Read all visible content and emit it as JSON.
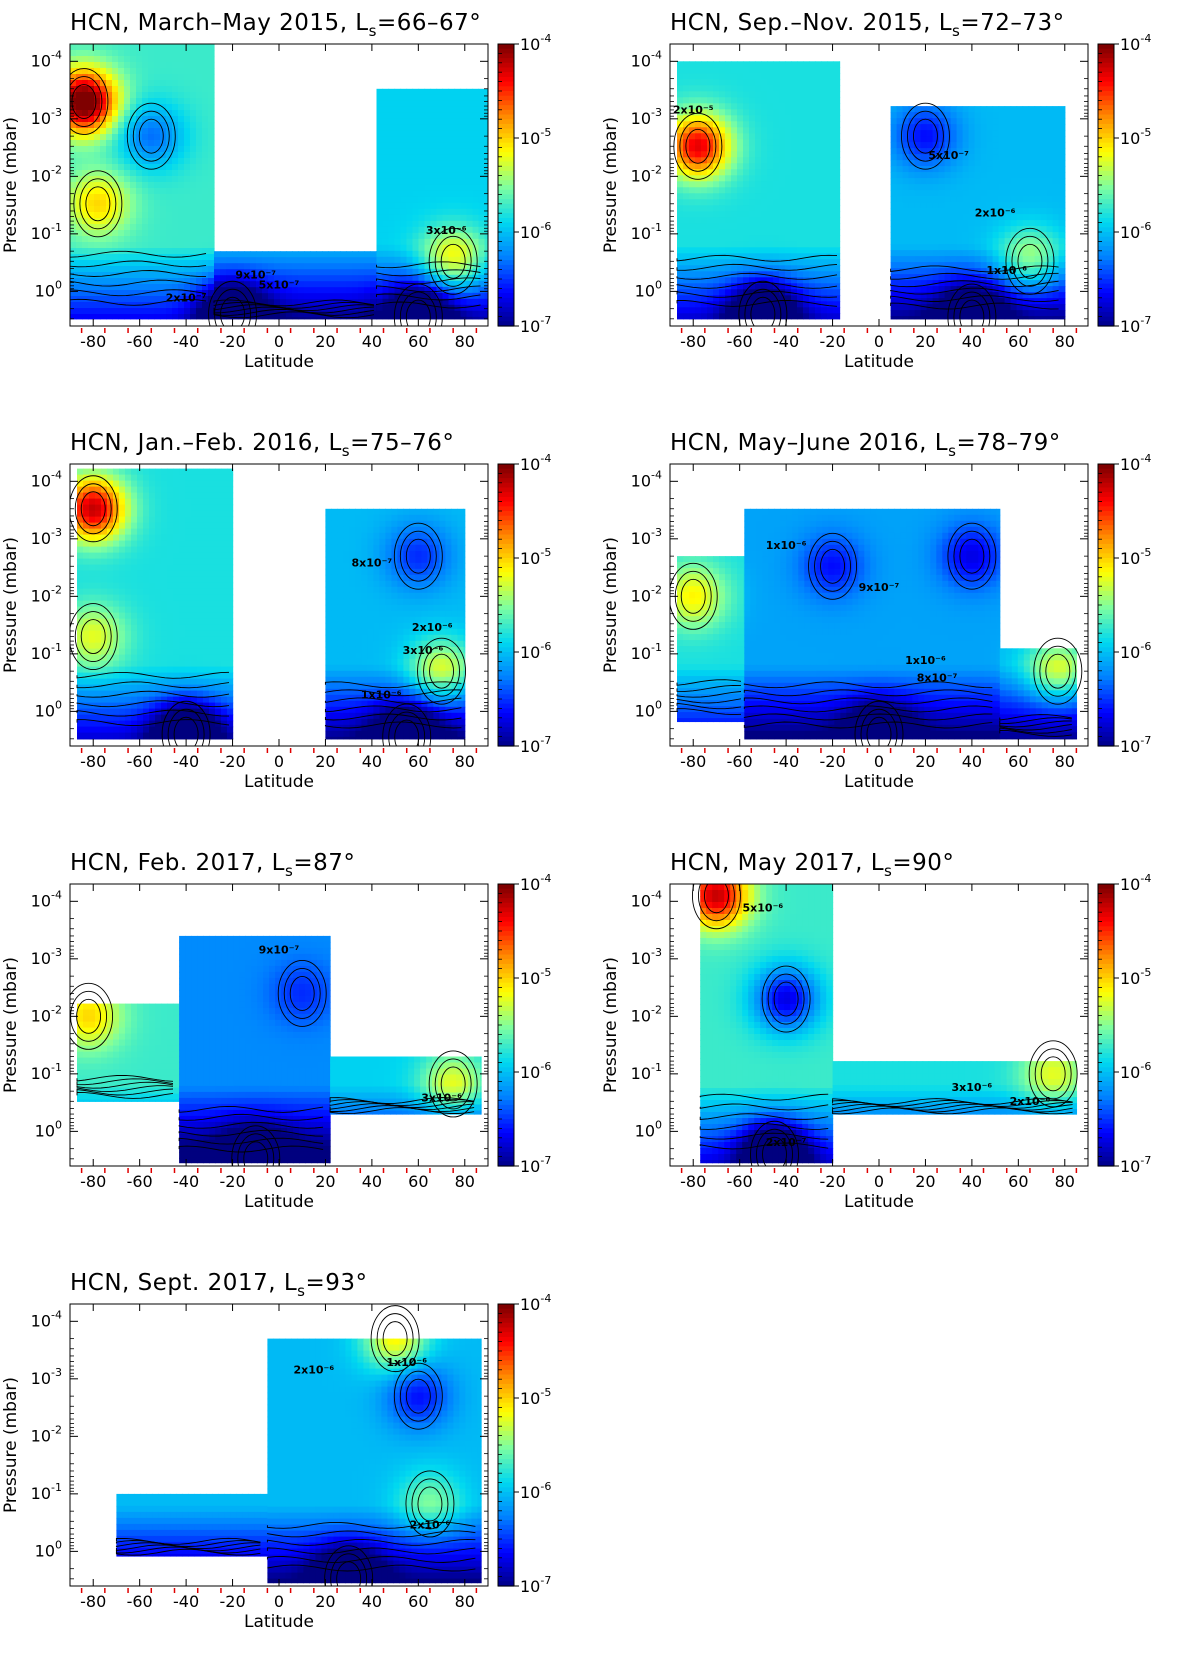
{
  "colorbar": {
    "ticks": [
      {
        "mant": "10",
        "exp": "-4",
        "v": -4
      },
      {
        "mant": "10",
        "exp": "-5",
        "v": -5
      },
      {
        "mant": "10",
        "exp": "-6",
        "v": -6
      },
      {
        "mant": "10",
        "exp": "-7",
        "v": -7
      }
    ],
    "colors": [
      "#00007f",
      "#0000ff",
      "#007fff",
      "#00d8f0",
      "#7fff9f",
      "#ffff00",
      "#ff8c00",
      "#ff0000",
      "#7f0000"
    ]
  },
  "chart_data": [
    {
      "type": "heatmap",
      "quantity": "HCN",
      "title_main": "HCN, March–May 2015, L",
      "title_sub": "s",
      "title_rest": "=66–67°",
      "xlabel": "Latitude",
      "ylabel": "Pressure (mbar)",
      "xlim": [
        -90,
        90
      ],
      "ylim_mbar": [
        5e-05,
        4.0
      ],
      "y_scale": "log",
      "xticks": [
        -80,
        -60,
        -40,
        -20,
        0,
        20,
        40,
        60,
        80
      ],
      "yticks": [
        {
          "mant": "10",
          "exp": "-4",
          "v": -4
        },
        {
          "mant": "10",
          "exp": "-3",
          "v": -3
        },
        {
          "mant": "10",
          "exp": "-2",
          "v": -2
        },
        {
          "mant": "10",
          "exp": "-1",
          "v": -1
        },
        {
          "mant": "10",
          "exp": "0",
          "v": 0
        }
      ],
      "colorbar_range": [
        1e-07,
        0.0001
      ],
      "colorbar_scale": "log",
      "regions": [
        {
          "lat": [
            -90,
            -28
          ],
          "p_top": 5e-05,
          "p_bot": 3.0,
          "base": -5.7
        },
        {
          "lat": [
            -28,
            42
          ],
          "p_top": 0.2,
          "p_bot": 3.0,
          "base": -6.0
        },
        {
          "lat": [
            42,
            90
          ],
          "p_top": 0.0003,
          "p_bot": 3.0,
          "base": -5.9
        }
      ],
      "features": [
        {
          "lat": -84,
          "p": 0.0005,
          "val": -3.8
        },
        {
          "lat": -78,
          "p": 0.03,
          "val": -5.0
        },
        {
          "lat": 75,
          "p": 0.3,
          "val": -5.0
        },
        {
          "lat": -20,
          "p": 2.5,
          "val": -7.0
        },
        {
          "lat": 60,
          "p": 2.8,
          "val": -7.0
        },
        {
          "lat": -55,
          "p": 0.002,
          "val": -6.3
        }
      ],
      "contour_labels": [
        {
          "text": "3x10⁻⁶",
          "lat": 72,
          "p": 0.1
        },
        {
          "text": "2x10⁻⁷",
          "lat": -40,
          "p": 1.5
        },
        {
          "text": "9x10⁻⁷",
          "lat": -10,
          "p": 0.6
        },
        {
          "text": "5x10⁻⁷",
          "lat": 0,
          "p": 0.9
        }
      ]
    },
    {
      "type": "heatmap",
      "quantity": "HCN",
      "title_main": "HCN, Sep.–Nov. 2015, L",
      "title_sub": "s",
      "title_rest": "=72–73°",
      "xlabel": "Latitude",
      "ylabel": "Pressure (mbar)",
      "xlim": [
        -90,
        90
      ],
      "ylim_mbar": [
        5e-05,
        4.0
      ],
      "y_scale": "log",
      "xticks": [
        -80,
        -60,
        -40,
        -20,
        0,
        20,
        40,
        60,
        80
      ],
      "yticks": [
        {
          "mant": "10",
          "exp": "-4",
          "v": -4
        },
        {
          "mant": "10",
          "exp": "-3",
          "v": -3
        },
        {
          "mant": "10",
          "exp": "-2",
          "v": -2
        },
        {
          "mant": "10",
          "exp": "-1",
          "v": -1
        },
        {
          "mant": "10",
          "exp": "0",
          "v": 0
        }
      ],
      "colorbar_range": [
        1e-07,
        0.0001
      ],
      "colorbar_scale": "log",
      "regions": [
        {
          "lat": [
            -87,
            -17
          ],
          "p_top": 0.0001,
          "p_bot": 3.0,
          "base": -5.8
        },
        {
          "lat": [
            5,
            80
          ],
          "p_top": 0.0006,
          "p_bot": 3.0,
          "base": -6.0
        }
      ],
      "features": [
        {
          "lat": -78,
          "p": 0.003,
          "val": -4.3
        },
        {
          "lat": 65,
          "p": 0.3,
          "val": -5.3
        },
        {
          "lat": -50,
          "p": 2.5,
          "val": -7.0
        },
        {
          "lat": 40,
          "p": 2.8,
          "val": -7.0
        },
        {
          "lat": 20,
          "p": 0.002,
          "val": -6.6
        }
      ],
      "contour_labels": [
        {
          "text": "2x10⁻⁶",
          "lat": 50,
          "p": 0.05
        },
        {
          "text": "5x10⁻⁷",
          "lat": 30,
          "p": 0.005
        },
        {
          "text": "1x10⁻⁶",
          "lat": 55,
          "p": 0.5
        },
        {
          "text": "2x10⁻⁵",
          "lat": -80,
          "p": 0.0008
        }
      ]
    },
    {
      "type": "heatmap",
      "quantity": "HCN",
      "title_main": "HCN, Jan.–Feb. 2016, L",
      "title_sub": "s",
      "title_rest": "=75–76°",
      "xlabel": "Latitude",
      "ylabel": "Pressure (mbar)",
      "xlim": [
        -90,
        90
      ],
      "ylim_mbar": [
        5e-05,
        4.0
      ],
      "y_scale": "log",
      "xticks": [
        -80,
        -60,
        -40,
        -20,
        0,
        20,
        40,
        60,
        80
      ],
      "yticks": [
        {
          "mant": "10",
          "exp": "-4",
          "v": -4
        },
        {
          "mant": "10",
          "exp": "-3",
          "v": -3
        },
        {
          "mant": "10",
          "exp": "-2",
          "v": -2
        },
        {
          "mant": "10",
          "exp": "-1",
          "v": -1
        },
        {
          "mant": "10",
          "exp": "0",
          "v": 0
        }
      ],
      "colorbar_range": [
        1e-07,
        0.0001
      ],
      "colorbar_scale": "log",
      "regions": [
        {
          "lat": [
            -87,
            -20
          ],
          "p_top": 6e-05,
          "p_bot": 3.0,
          "base": -5.8
        },
        {
          "lat": [
            20,
            80
          ],
          "p_top": 0.0003,
          "p_bot": 3.0,
          "base": -6.0
        }
      ],
      "features": [
        {
          "lat": -80,
          "p": 0.0003,
          "val": -4.2
        },
        {
          "lat": -80,
          "p": 0.05,
          "val": -5.2
        },
        {
          "lat": 70,
          "p": 0.2,
          "val": -5.2
        },
        {
          "lat": -40,
          "p": 2.5,
          "val": -7.0
        },
        {
          "lat": 55,
          "p": 2.8,
          "val": -7.0
        },
        {
          "lat": 60,
          "p": 0.002,
          "val": -6.5
        }
      ],
      "contour_labels": [
        {
          "text": "3x10⁻⁶",
          "lat": 62,
          "p": 0.1
        },
        {
          "text": "2x10⁻⁶",
          "lat": 66,
          "p": 0.04
        },
        {
          "text": "1x10⁻⁶",
          "lat": 44,
          "p": 0.6
        },
        {
          "text": "8x10⁻⁷",
          "lat": 40,
          "p": 0.003
        }
      ]
    },
    {
      "type": "heatmap",
      "quantity": "HCN",
      "title_main": "HCN, May–June 2016, L",
      "title_sub": "s",
      "title_rest": "=78–79°",
      "xlabel": "Latitude",
      "ylabel": "Pressure (mbar)",
      "xlim": [
        -90,
        90
      ],
      "ylim_mbar": [
        5e-05,
        4.0
      ],
      "y_scale": "log",
      "xticks": [
        -80,
        -60,
        -40,
        -20,
        0,
        20,
        40,
        60,
        80
      ],
      "yticks": [
        {
          "mant": "10",
          "exp": "-4",
          "v": -4
        },
        {
          "mant": "10",
          "exp": "-3",
          "v": -3
        },
        {
          "mant": "10",
          "exp": "-2",
          "v": -2
        },
        {
          "mant": "10",
          "exp": "-1",
          "v": -1
        },
        {
          "mant": "10",
          "exp": "0",
          "v": 0
        }
      ],
      "colorbar_range": [
        1e-07,
        0.0001
      ],
      "colorbar_scale": "log",
      "regions": [
        {
          "lat": [
            -87,
            -58
          ],
          "p_top": 0.002,
          "p_bot": 1.5,
          "base": -5.8
        },
        {
          "lat": [
            -58,
            52
          ],
          "p_top": 0.0003,
          "p_bot": 3.0,
          "base": -6.1
        },
        {
          "lat": [
            52,
            85
          ],
          "p_top": 0.08,
          "p_bot": 3.0,
          "base": -6.0
        }
      ],
      "features": [
        {
          "lat": -80,
          "p": 0.01,
          "val": -5.1
        },
        {
          "lat": 77,
          "p": 0.2,
          "val": -5.2
        },
        {
          "lat": 40,
          "p": 0.002,
          "val": -6.7
        },
        {
          "lat": -20,
          "p": 0.003,
          "val": -6.6
        },
        {
          "lat": 0,
          "p": 2.5,
          "val": -7.0
        }
      ],
      "contour_labels": [
        {
          "text": "1x10⁻⁶",
          "lat": 20,
          "p": 0.15
        },
        {
          "text": "8x10⁻⁷",
          "lat": 25,
          "p": 0.3
        },
        {
          "text": "9x10⁻⁷",
          "lat": 0,
          "p": 0.008
        },
        {
          "text": "1x10⁻⁶",
          "lat": -40,
          "p": 0.0015
        }
      ]
    },
    {
      "type": "heatmap",
      "quantity": "HCN",
      "title_main": "HCN, Feb. 2017, L",
      "title_sub": "s",
      "title_rest": "=87°",
      "xlabel": "Latitude",
      "ylabel": "Pressure (mbar)",
      "xlim": [
        -90,
        90
      ],
      "ylim_mbar": [
        5e-05,
        4.0
      ],
      "y_scale": "log",
      "xticks": [
        -80,
        -60,
        -40,
        -20,
        0,
        20,
        40,
        60,
        80
      ],
      "yticks": [
        {
          "mant": "10",
          "exp": "-4",
          "v": -4
        },
        {
          "mant": "10",
          "exp": "-3",
          "v": -3
        },
        {
          "mant": "10",
          "exp": "-2",
          "v": -2
        },
        {
          "mant": "10",
          "exp": "-1",
          "v": -1
        },
        {
          "mant": "10",
          "exp": "0",
          "v": 0
        }
      ],
      "colorbar_range": [
        1e-07,
        0.0001
      ],
      "colorbar_scale": "log",
      "regions": [
        {
          "lat": [
            -87,
            -43
          ],
          "p_top": 0.006,
          "p_bot": 0.3,
          "base": -5.7
        },
        {
          "lat": [
            -43,
            22
          ],
          "p_top": 0.0004,
          "p_bot": 3.5,
          "base": -6.2
        },
        {
          "lat": [
            22,
            87
          ],
          "p_top": 0.05,
          "p_bot": 0.5,
          "base": -5.9
        }
      ],
      "features": [
        {
          "lat": -82,
          "p": 0.01,
          "val": -5.0
        },
        {
          "lat": 75,
          "p": 0.15,
          "val": -5.2
        },
        {
          "lat": -10,
          "p": 3.0,
          "val": -7.0
        },
        {
          "lat": 10,
          "p": 0.004,
          "val": -6.5
        }
      ],
      "contour_labels": [
        {
          "text": "3x10⁻⁶",
          "lat": 70,
          "p": 0.3
        },
        {
          "text": "9x10⁻⁷",
          "lat": 0,
          "p": 0.0008
        }
      ]
    },
    {
      "type": "heatmap",
      "quantity": "HCN",
      "title_main": "HCN, May 2017, L",
      "title_sub": "s",
      "title_rest": "=90°",
      "xlabel": "Latitude",
      "ylabel": "Pressure (mbar)",
      "xlim": [
        -90,
        90
      ],
      "ylim_mbar": [
        5e-05,
        4.0
      ],
      "y_scale": "log",
      "xticks": [
        -80,
        -60,
        -40,
        -20,
        0,
        20,
        40,
        60,
        80
      ],
      "yticks": [
        {
          "mant": "10",
          "exp": "-4",
          "v": -4
        },
        {
          "mant": "10",
          "exp": "-3",
          "v": -3
        },
        {
          "mant": "10",
          "exp": "-2",
          "v": -2
        },
        {
          "mant": "10",
          "exp": "-1",
          "v": -1
        },
        {
          "mant": "10",
          "exp": "0",
          "v": 0
        }
      ],
      "colorbar_range": [
        1e-07,
        0.0001
      ],
      "colorbar_scale": "log",
      "regions": [
        {
          "lat": [
            -77,
            -20
          ],
          "p_top": 5e-05,
          "p_bot": 3.5,
          "base": -5.7
        },
        {
          "lat": [
            -20,
            85
          ],
          "p_top": 0.06,
          "p_bot": 0.5,
          "base": -5.8
        }
      ],
      "features": [
        {
          "lat": -70,
          "p": 8e-05,
          "val": -4.2
        },
        {
          "lat": -40,
          "p": 0.005,
          "val": -6.7
        },
        {
          "lat": 75,
          "p": 0.1,
          "val": -5.2
        },
        {
          "lat": -45,
          "p": 2.5,
          "val": -7.0
        }
      ],
      "contour_labels": [
        {
          "text": "3x10⁻⁶",
          "lat": 40,
          "p": 0.2
        },
        {
          "text": "2x10⁻⁶",
          "lat": 65,
          "p": 0.35
        },
        {
          "text": "2x10⁻⁷",
          "lat": -40,
          "p": 1.8
        },
        {
          "text": "5x10⁻⁶",
          "lat": -50,
          "p": 0.00015
        }
      ]
    },
    {
      "type": "heatmap",
      "quantity": "HCN",
      "title_main": "HCN, Sept. 2017, L",
      "title_sub": "s",
      "title_rest": "=93°",
      "xlabel": "Latitude",
      "ylabel": "Pressure (mbar)",
      "xlim": [
        -90,
        90
      ],
      "ylim_mbar": [
        5e-05,
        4.0
      ],
      "y_scale": "log",
      "xticks": [
        -80,
        -60,
        -40,
        -20,
        0,
        20,
        40,
        60,
        80
      ],
      "yticks": [
        {
          "mant": "10",
          "exp": "-4",
          "v": -4
        },
        {
          "mant": "10",
          "exp": "-3",
          "v": -3
        },
        {
          "mant": "10",
          "exp": "-2",
          "v": -2
        },
        {
          "mant": "10",
          "exp": "-1",
          "v": -1
        },
        {
          "mant": "10",
          "exp": "0",
          "v": 0
        }
      ],
      "colorbar_range": [
        1e-07,
        0.0001
      ],
      "colorbar_scale": "log",
      "regions": [
        {
          "lat": [
            -70,
            -5
          ],
          "p_top": 0.1,
          "p_bot": 1.2,
          "base": -6.0
        },
        {
          "lat": [
            -5,
            87
          ],
          "p_top": 0.0002,
          "p_bot": 3.5,
          "base": -6.0
        }
      ],
      "features": [
        {
          "lat": 50,
          "p": 0.0002,
          "val": -5.1
        },
        {
          "lat": 65,
          "p": 0.15,
          "val": -5.5
        },
        {
          "lat": 60,
          "p": 0.002,
          "val": -6.6
        },
        {
          "lat": 30,
          "p": 3.0,
          "val": -7.0
        }
      ],
      "contour_labels": [
        {
          "text": "2x10⁻⁶",
          "lat": 65,
          "p": 0.4
        },
        {
          "text": "2x10⁻⁶",
          "lat": 15,
          "p": 0.0008
        },
        {
          "text": "1x10⁻⁶",
          "lat": 55,
          "p": 0.0006
        }
      ]
    }
  ]
}
